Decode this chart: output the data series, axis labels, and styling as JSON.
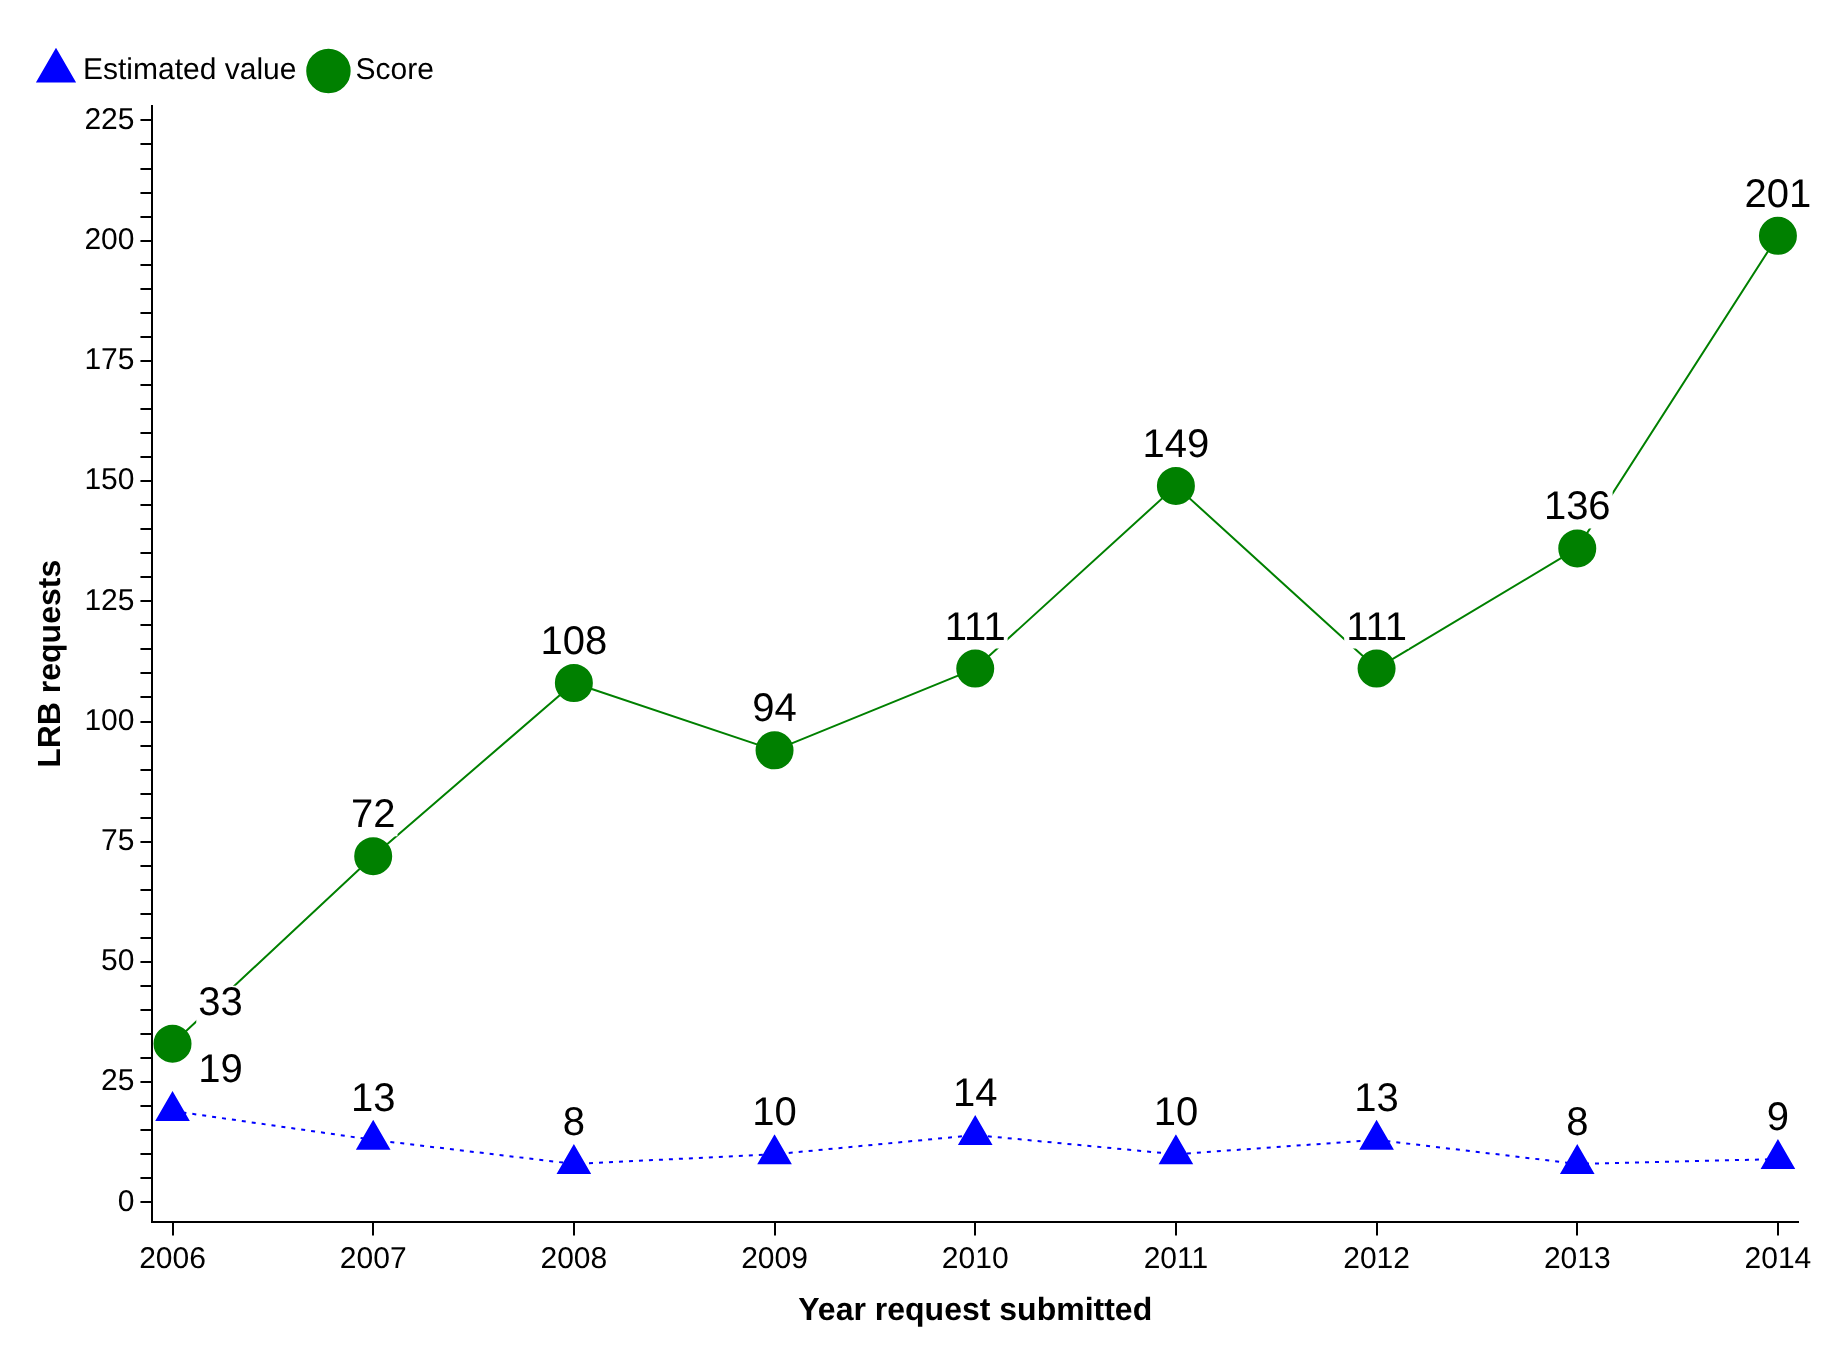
{
  "chart_data": {
    "type": "line",
    "xlabel": "Year request submitted",
    "ylabel": "LRB requests",
    "x": [
      2006,
      2007,
      2008,
      2009,
      2010,
      2011,
      2012,
      2013,
      2014
    ],
    "xlim": [
      2005.9,
      2014.1
    ],
    "xticks": [
      2006,
      2007,
      2008,
      2009,
      2010,
      2011,
      2012,
      2013,
      2014
    ],
    "ylim": [
      -4,
      228
    ],
    "yticks": [
      0,
      {
        "value": 5,
        "label": null
      },
      {
        "value": 10,
        "label": null
      },
      {
        "value": 15,
        "label": null
      },
      {
        "value": 20,
        "label": null
      },
      25,
      {
        "value": 30,
        "label": null
      },
      {
        "value": 35,
        "label": null
      },
      {
        "value": 40,
        "label": null
      },
      {
        "value": 45,
        "label": null
      },
      50,
      {
        "value": 55,
        "label": null
      },
      {
        "value": 60,
        "label": null
      },
      {
        "value": 65,
        "label": null
      },
      {
        "value": 70,
        "label": null
      },
      75,
      {
        "value": 80,
        "label": null
      },
      {
        "value": 85,
        "label": null
      },
      {
        "value": 90,
        "label": null
      },
      {
        "value": 95,
        "label": null
      },
      100,
      {
        "value": 105,
        "label": null
      },
      {
        "value": 110,
        "label": null
      },
      {
        "value": 115,
        "label": null
      },
      {
        "value": 120,
        "label": null
      },
      125,
      {
        "value": 130,
        "label": null
      },
      {
        "value": 135,
        "label": null
      },
      {
        "value": 140,
        "label": null
      },
      {
        "value": 145,
        "label": null
      },
      150,
      {
        "value": 155,
        "label": null
      },
      {
        "value": 160,
        "label": null
      },
      {
        "value": 165,
        "label": null
      },
      {
        "value": 170,
        "label": null
      },
      175,
      {
        "value": 180,
        "label": null
      },
      {
        "value": 185,
        "label": null
      },
      {
        "value": 190,
        "label": null
      },
      {
        "value": 195,
        "label": null
      },
      200,
      {
        "value": 205,
        "label": null
      },
      {
        "value": 210,
        "label": null
      },
      {
        "value": 215,
        "label": null
      },
      {
        "value": 220,
        "label": null
      },
      225
    ],
    "series": [
      {
        "name": "Estimated value",
        "color": "#0000ff",
        "marker": "triangle",
        "line_style": "dotted",
        "values": [
          19,
          13,
          8,
          10,
          14,
          10,
          13,
          8,
          9
        ]
      },
      {
        "name": "Score",
        "color": "#008000",
        "marker": "circle",
        "line_style": "solid",
        "values": [
          33,
          72,
          108,
          94,
          111,
          149,
          111,
          136,
          201
        ]
      }
    ],
    "data_labels": true,
    "legend": "top left",
    "grid": false
  }
}
